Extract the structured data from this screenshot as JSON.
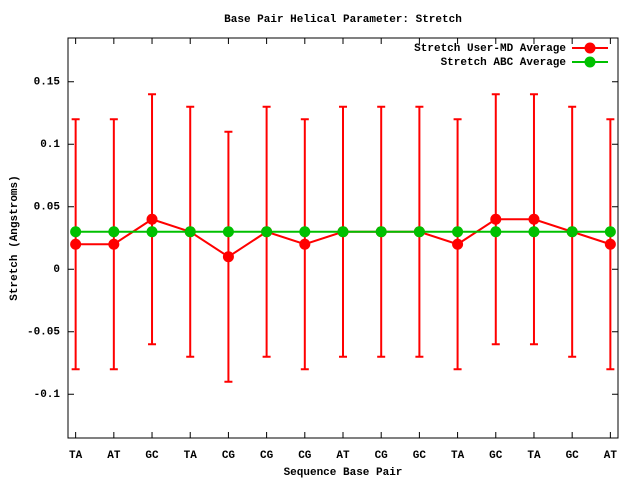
{
  "chart_data": {
    "type": "line",
    "title": "Base Pair Helical Parameter: Stretch",
    "x_label": "Sequence Base Pair",
    "y_label": "Stretch (Angstroms)",
    "categories": [
      "TA",
      "AT",
      "GC",
      "TA",
      "CG",
      "CG",
      "CG",
      "AT",
      "CG",
      "GC",
      "TA",
      "GC",
      "TA",
      "GC",
      "AT"
    ],
    "series": [
      {
        "name": "Stretch User-MD Average",
        "color": "#ff0000",
        "values": [
          0.02,
          0.02,
          0.04,
          0.03,
          0.01,
          0.03,
          0.02,
          0.03,
          0.03,
          0.03,
          0.02,
          0.04,
          0.04,
          0.03,
          0.02
        ],
        "errors": [
          0.1,
          0.1,
          0.1,
          0.1,
          0.1,
          0.1,
          0.1,
          0.1,
          0.1,
          0.1,
          0.1,
          0.1,
          0.1,
          0.1,
          0.1
        ]
      },
      {
        "name": "Stretch ABC Average",
        "color": "#00c000",
        "values": [
          0.03,
          0.03,
          0.03,
          0.03,
          0.03,
          0.03,
          0.03,
          0.03,
          0.03,
          0.03,
          0.03,
          0.03,
          0.03,
          0.03,
          0.03
        ]
      }
    ],
    "ylim": [
      -0.135,
      0.185
    ],
    "yticks": [
      -0.1,
      -0.05,
      0,
      0.05,
      0.1,
      0.15
    ],
    "grid": false,
    "legend": "top-right"
  }
}
